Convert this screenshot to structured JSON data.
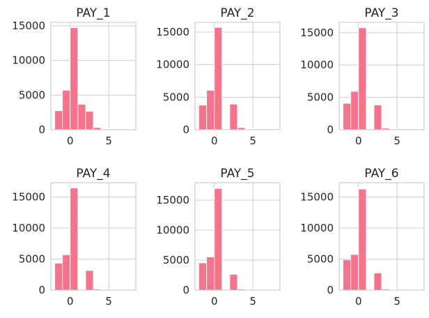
{
  "chart_data": [
    {
      "type": "bar",
      "title": "PAY_1",
      "xlim": [
        -2.5,
        8.5
      ],
      "ylim": [
        0,
        15500
      ],
      "xticks": [
        0,
        5
      ],
      "xtick_labels": [
        "0",
        "5"
      ],
      "yticks": [
        0,
        5000,
        10000,
        15000
      ],
      "ytick_labels": [
        "0",
        "5000",
        "10000",
        "15000"
      ],
      "grid": true,
      "bin_edges": [
        -2,
        -1,
        0,
        1,
        2,
        3,
        4,
        5,
        6,
        7,
        8
      ],
      "values": [
        2750,
        5690,
        14740,
        3670,
        2670,
        320,
        76,
        26,
        11,
        19
      ],
      "color": "#f7728a"
    },
    {
      "type": "bar",
      "title": "PAY_2",
      "xlim": [
        -2.5,
        8.5
      ],
      "ylim": [
        0,
        16500
      ],
      "xticks": [
        0,
        5
      ],
      "xtick_labels": [
        "0",
        "5"
      ],
      "yticks": [
        0,
        5000,
        10000,
        15000
      ],
      "ytick_labels": [
        "0",
        "5000",
        "10000",
        "15000"
      ],
      "grid": true,
      "bin_edges": [
        -2,
        -1,
        0,
        1,
        2,
        3,
        4,
        5,
        6,
        7,
        8
      ],
      "values": [
        3780,
        6050,
        15730,
        28,
        3930,
        330,
        99,
        25,
        12,
        21
      ],
      "color": "#f7728a"
    },
    {
      "type": "bar",
      "title": "PAY_3",
      "xlim": [
        -2.5,
        8.5
      ],
      "ylim": [
        0,
        16600
      ],
      "xticks": [
        0,
        5
      ],
      "xtick_labels": [
        "0",
        "5"
      ],
      "yticks": [
        0,
        5000,
        10000,
        15000
      ],
      "ytick_labels": [
        "0",
        "5000",
        "10000",
        "15000"
      ],
      "grid": true,
      "bin_edges": [
        -2,
        -1,
        0,
        1,
        2,
        3,
        4,
        5,
        6,
        7,
        8
      ],
      "values": [
        4085,
        5940,
        15760,
        4,
        3820,
        240,
        76,
        21,
        23,
        27
      ],
      "color": "#f7728a"
    },
    {
      "type": "bar",
      "title": "PAY_4",
      "xlim": [
        -2.5,
        8.5
      ],
      "ylim": [
        0,
        17300
      ],
      "xticks": [
        0,
        5
      ],
      "xtick_labels": [
        "0",
        "5"
      ],
      "yticks": [
        0,
        5000,
        10000,
        15000
      ],
      "ytick_labels": [
        "0",
        "5000",
        "10000",
        "15000"
      ],
      "grid": true,
      "bin_edges": [
        -2,
        -1,
        0,
        1,
        2,
        3,
        4,
        5,
        6,
        7,
        8
      ],
      "values": [
        4350,
        5690,
        16450,
        2,
        3160,
        180,
        69,
        35,
        5,
        60
      ],
      "color": "#f7728a"
    },
    {
      "type": "bar",
      "title": "PAY_5",
      "xlim": [
        -2.5,
        8.5
      ],
      "ylim": [
        0,
        17900
      ],
      "xticks": [
        0,
        5
      ],
      "xtick_labels": [
        "0",
        "5"
      ],
      "yticks": [
        0,
        5000,
        10000,
        15000
      ],
      "ytick_labels": [
        "0",
        "5000",
        "10000",
        "15000"
      ],
      "grid": true,
      "bin_edges": [
        -2,
        -1,
        0,
        1,
        2,
        3,
        4,
        5,
        6,
        7,
        8
      ],
      "values": [
        4550,
        5540,
        16950,
        0,
        2630,
        180,
        84,
        17,
        4,
        58
      ],
      "color": "#f7728a"
    },
    {
      "type": "bar",
      "title": "PAY_6",
      "xlim": [
        -2.5,
        8.5
      ],
      "ylim": [
        0,
        17300
      ],
      "xticks": [
        0,
        5
      ],
      "xtick_labels": [
        "0",
        "5"
      ],
      "yticks": [
        0,
        5000,
        10000,
        15000
      ],
      "ytick_labels": [
        "0",
        "5000",
        "10000",
        "15000"
      ],
      "grid": true,
      "bin_edges": [
        -2,
        -1,
        0,
        1,
        2,
        3,
        4,
        5,
        6,
        7,
        8
      ],
      "values": [
        4900,
        5740,
        16290,
        0,
        2770,
        184,
        49,
        13,
        19,
        46
      ],
      "color": "#f7728a"
    }
  ]
}
